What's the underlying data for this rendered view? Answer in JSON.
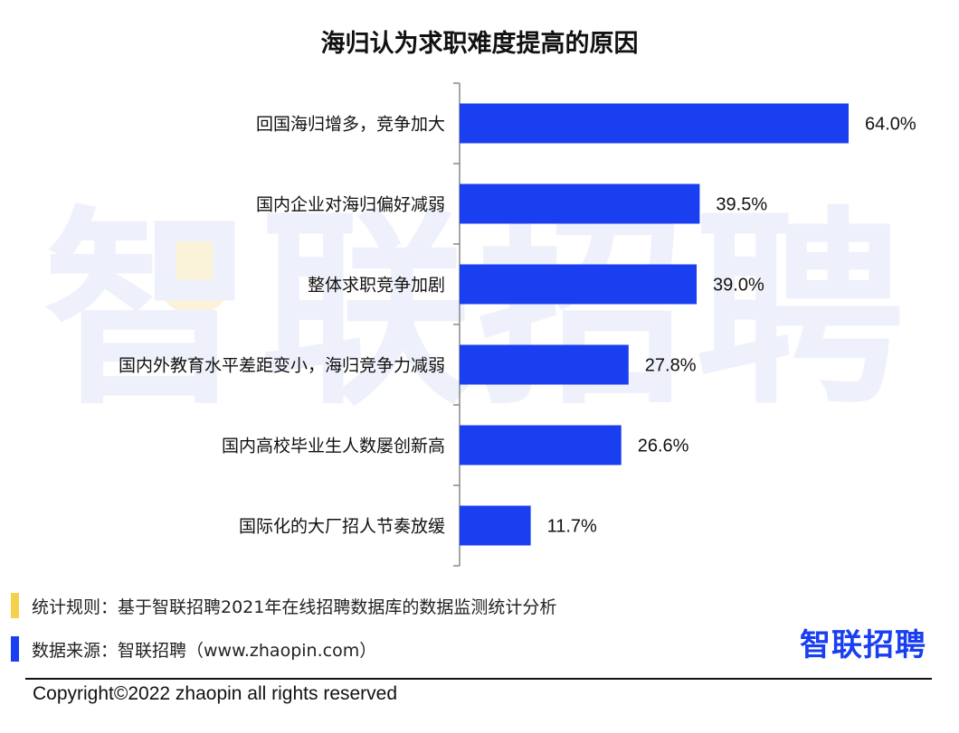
{
  "chart_data": {
    "type": "bar",
    "orientation": "horizontal",
    "title": "海归认为求职难度提高的原因",
    "categories": [
      "回国海归增多，竞争加大",
      "国内企业对海归偏好减弱",
      "整体求职竞争加剧",
      "国内外教育水平差距变小，海归竞争力减弱",
      "国内高校毕业生人数屡创新高",
      "国际化的大厂招人节奏放缓"
    ],
    "values": [
      64.0,
      39.5,
      39.0,
      27.8,
      26.6,
      11.7
    ],
    "value_labels": [
      "64.0%",
      "39.5%",
      "39.0%",
      "27.8%",
      "26.6%",
      "11.7%"
    ],
    "unit": "%",
    "xlim": [
      0,
      70
    ],
    "grid": false,
    "legend": false,
    "bar_color": "#1a3ff0"
  },
  "watermark": "智联招聘",
  "notes": {
    "rule_text": "统计规则：基于智联招聘2021年在线招聘数据库的数据监测统计分析",
    "rule_color": "#f5d24e",
    "source_text": "数据来源：智联招聘（www.zhaopin.com）",
    "source_color": "#1a3ff0"
  },
  "logo": {
    "text": "智联招聘",
    "color": "#1a3ff0"
  },
  "footer": {
    "copyright": "Copyright©2022 zhaopin all rights reserved"
  }
}
